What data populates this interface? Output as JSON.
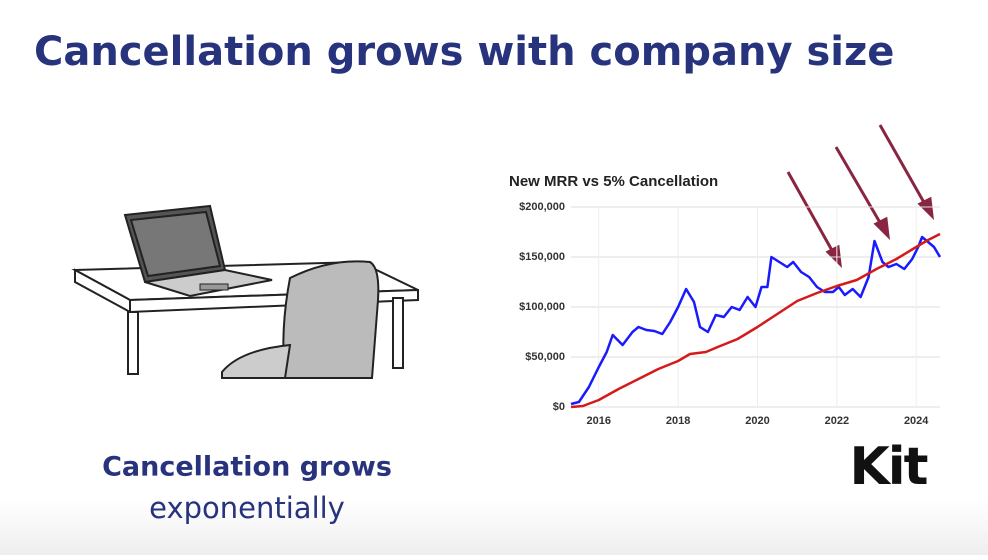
{
  "header": {
    "title": "Cancellation grows with company size"
  },
  "caption": {
    "line1": "Cancellation grows",
    "line2": "exponentially"
  },
  "logo": {
    "text": "Kit"
  },
  "chart_data": {
    "type": "line",
    "title": "New MRR vs 5% Cancellation",
    "series": [
      {
        "color": "#1a1aff",
        "x": [
          2015.3,
          2015.5,
          2015.75,
          2016.0,
          2016.2,
          2016.35,
          2016.6,
          2016.85,
          2017.0,
          2017.2,
          2017.4,
          2017.6,
          2017.8,
          2018.0,
          2018.2,
          2018.4,
          2018.55,
          2018.75,
          2018.95,
          2019.15,
          2019.35,
          2019.55,
          2019.75,
          2019.95,
          2020.1,
          2020.25,
          2020.35,
          2020.55,
          2020.75,
          2020.9,
          2021.1,
          2021.3,
          2021.5,
          2021.7,
          2021.9,
          2022.05,
          2022.2,
          2022.4,
          2022.6,
          2022.8,
          2022.95,
          2023.15,
          2023.3,
          2023.5,
          2023.7,
          2023.9,
          2024.05,
          2024.15,
          2024.3,
          2024.45,
          2024.6
        ],
        "values": [
          3000,
          5000,
          20000,
          40000,
          55000,
          72000,
          62000,
          75000,
          80000,
          77000,
          76000,
          73000,
          85000,
          100000,
          118000,
          105000,
          80000,
          75000,
          92000,
          90000,
          100000,
          97000,
          110000,
          100000,
          120000,
          120000,
          150000,
          145000,
          140000,
          145000,
          135000,
          130000,
          120000,
          115000,
          115000,
          120000,
          112000,
          118000,
          110000,
          130000,
          166000,
          145000,
          140000,
          143000,
          138000,
          148000,
          160000,
          170000,
          165000,
          160000,
          150000
        ]
      },
      {
        "color": "#d41a1a",
        "x": [
          2015.3,
          2015.6,
          2016.0,
          2016.5,
          2017.0,
          2017.5,
          2018.0,
          2018.3,
          2018.7,
          2019.0,
          2019.5,
          2020.0,
          2020.5,
          2021.0,
          2021.5,
          2022.0,
          2022.5,
          2023.0,
          2023.5,
          2024.0,
          2024.3,
          2024.6
        ],
        "values": [
          0,
          1000,
          7000,
          18000,
          28000,
          38000,
          46000,
          53000,
          55000,
          60000,
          68000,
          80000,
          93000,
          106000,
          114000,
          121000,
          127000,
          138000,
          148000,
          160000,
          167000,
          173000
        ]
      }
    ],
    "xlim": [
      2015.3,
      2024.6
    ],
    "xticks": [
      2016,
      2018,
      2020,
      2022,
      2024
    ],
    "ylim": [
      0,
      200000
    ],
    "yticks": [
      {
        "value": 0,
        "label": "$0"
      },
      {
        "value": 50000,
        "label": "$50,000"
      },
      {
        "value": 100000,
        "label": "$100,000"
      },
      {
        "value": 150000,
        "label": "$150,000"
      },
      {
        "value": 200000,
        "label": "$200,000"
      }
    ],
    "grid": true
  }
}
